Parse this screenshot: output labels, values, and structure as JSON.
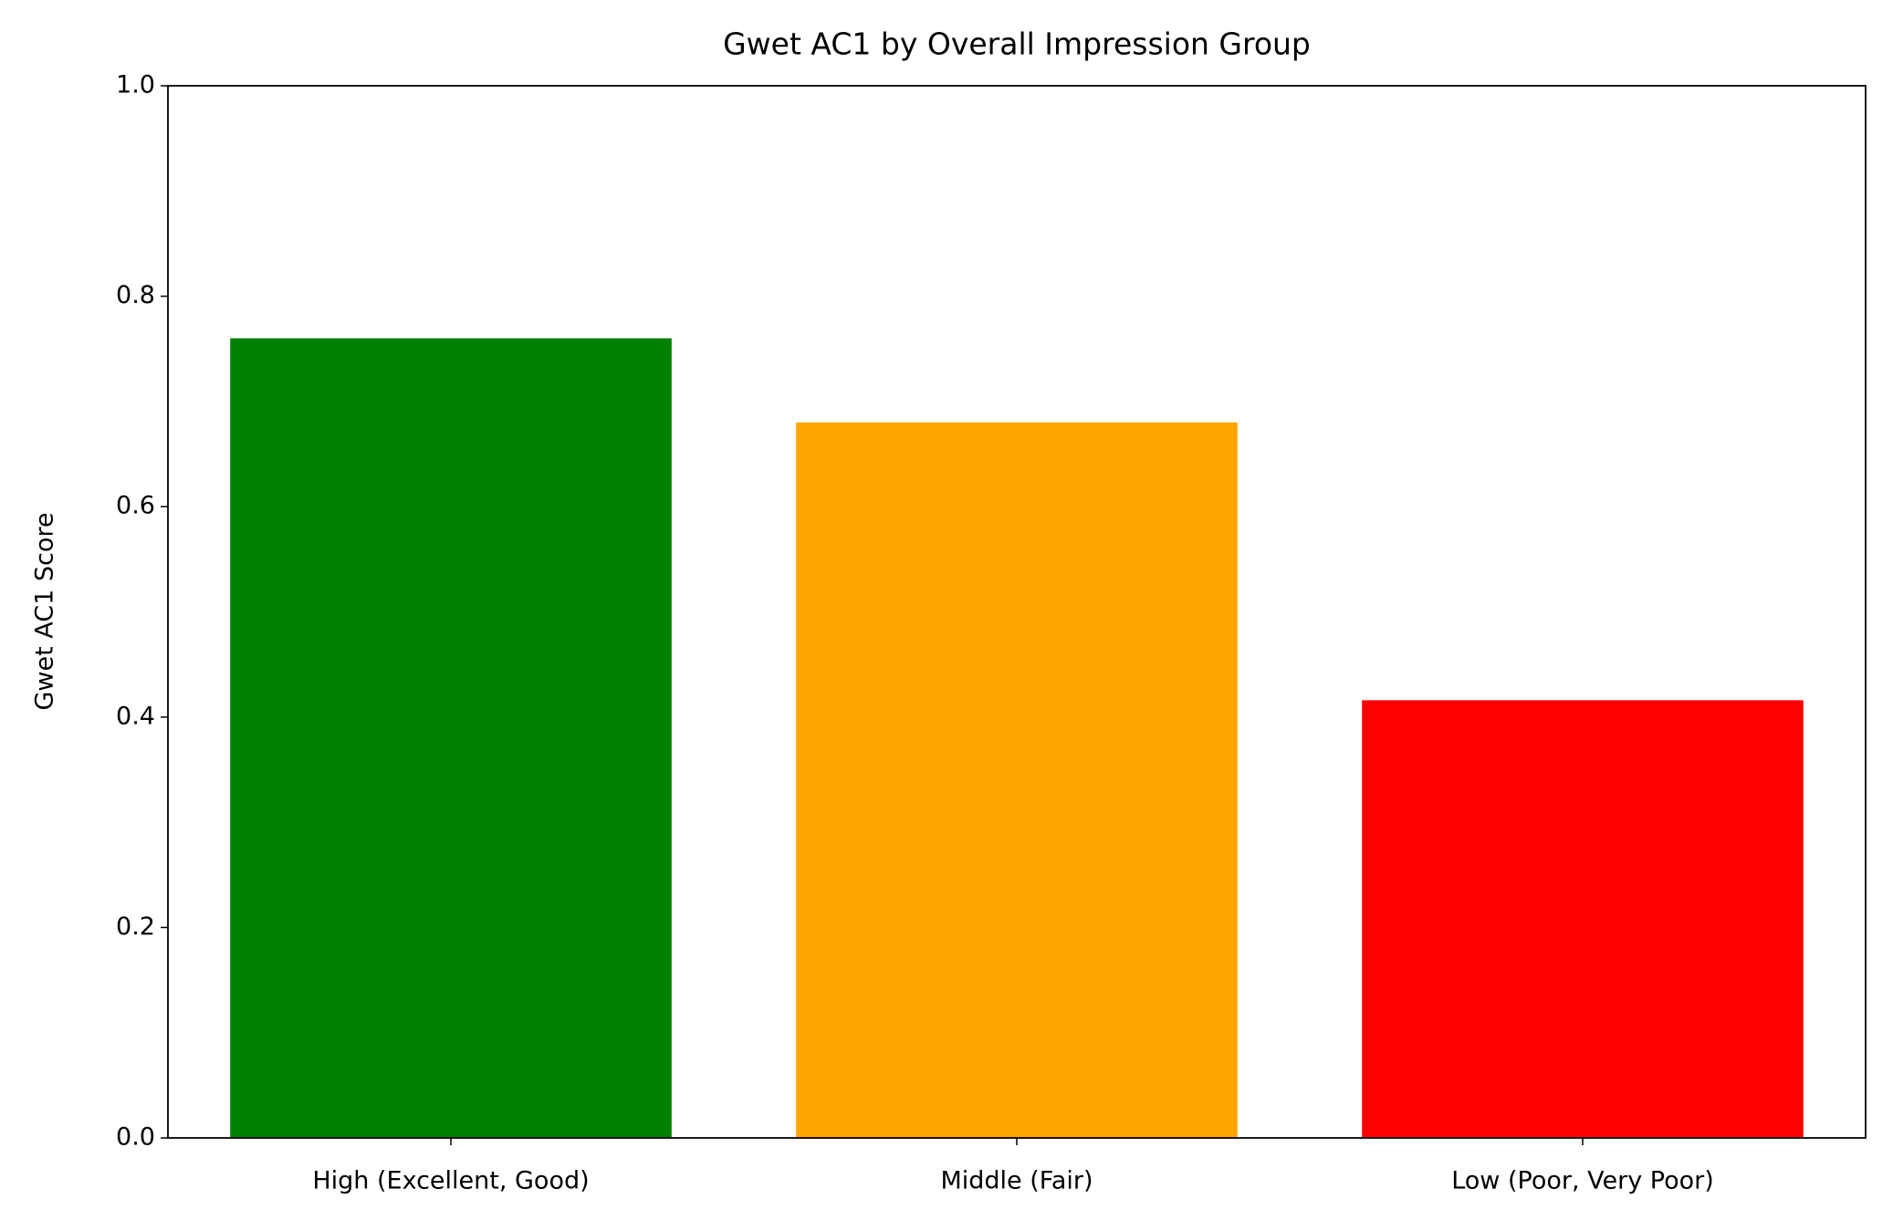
{
  "chart_data": {
    "type": "bar",
    "title": "Gwet AC1 by Overall Impression Group",
    "y_label": "Gwet AC1 Score",
    "categories": [
      "High (Excellent, Good)",
      "Middle (Fair)",
      "Low (Poor, Very Poor)"
    ],
    "values": [
      0.76,
      0.68,
      0.416
    ],
    "colors": [
      "#008000",
      "#ffa500",
      "#ff0000"
    ],
    "ylim": [
      0,
      1
    ],
    "yticks": [
      {
        "value": 0,
        "label": "0.0"
      },
      0.2,
      0.4,
      0.6,
      0.8,
      {
        "value": 1,
        "label": "1.0"
      }
    ],
    "grid": false
  }
}
